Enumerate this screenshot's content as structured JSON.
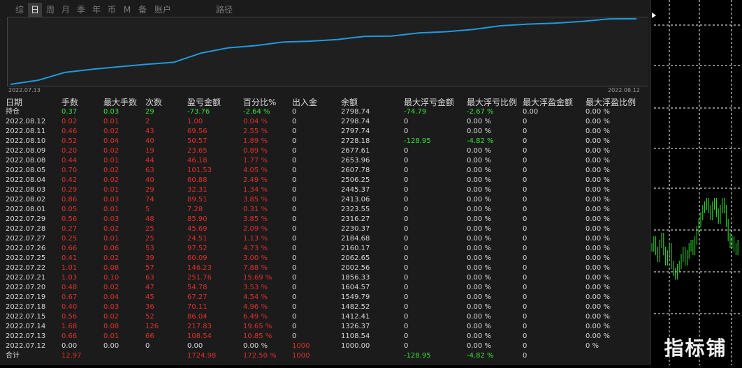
{
  "tabs": [
    "综",
    "日",
    "周",
    "月",
    "季",
    "年",
    "币",
    "M",
    "备",
    "账户",
    "路径"
  ],
  "active_tab": "日",
  "equity_chart": {
    "start_label": "2022.07.13",
    "end_label": "2022.08.12",
    "color": "#1e9be0",
    "points": [
      1000,
      1108.54,
      1326.37,
      1412.41,
      1482.52,
      1549.79,
      1604.57,
      1856.33,
      2002.56,
      2062.65,
      2160.17,
      2184.68,
      2230.37,
      2316.27,
      2323.55,
      2413.06,
      2445.37,
      2506.25,
      2607.78,
      2653.96,
      2677.61,
      2728.18,
      2797.74,
      2798.74
    ]
  },
  "headers": [
    "日期",
    "手数",
    "最大手数",
    "次数",
    "盈亏金额",
    "百分比%",
    "出入金",
    "余额",
    "最大浮亏金额",
    "最大浮亏比例",
    "最大浮盈金额",
    "最大浮盈比例"
  ],
  "position_row": [
    "持仓",
    "0.37",
    "0.03",
    "29",
    "-73.76",
    "-2.64 %",
    "0",
    "2798.74",
    "-74.79",
    "-2.67 %",
    "0.00",
    "0.00 %"
  ],
  "rows": [
    [
      "2022.08.12",
      "0.02",
      "0.01",
      "2",
      "1.00",
      "0.04 %",
      "0",
      "2798.74",
      "0",
      "0.00 %",
      "0",
      "0.00 %"
    ],
    [
      "2022.08.11",
      "0.46",
      "0.02",
      "43",
      "69.56",
      "2.55 %",
      "0",
      "2797.74",
      "0",
      "0.00 %",
      "0",
      "0.00 %"
    ],
    [
      "2022.08.10",
      "0.52",
      "0.04",
      "40",
      "50.57",
      "1.89 %",
      "0",
      "2728.18",
      "-128.95",
      "-4.82 %",
      "0",
      "0.00 %"
    ],
    [
      "2022.08.09",
      "0.20",
      "0.02",
      "19",
      "23.65",
      "0.89 %",
      "0",
      "2677.61",
      "0",
      "0.00 %",
      "0",
      "0.00 %"
    ],
    [
      "2022.08.08",
      "0.44",
      "0.01",
      "44",
      "46.18",
      "1.77 %",
      "0",
      "2653.96",
      "0",
      "0.00 %",
      "0",
      "0.00 %"
    ],
    [
      "2022.08.05",
      "0.70",
      "0.02",
      "63",
      "101.53",
      "4.05 %",
      "0",
      "2607.78",
      "0",
      "0.00 %",
      "0",
      "0.00 %"
    ],
    [
      "2022.08.04",
      "0.42",
      "0.02",
      "40",
      "60.88",
      "2.49 %",
      "0",
      "2506.25",
      "0",
      "0.00 %",
      "0",
      "0.00 %"
    ],
    [
      "2022.08.03",
      "0.29",
      "0.01",
      "29",
      "32.31",
      "1.34 %",
      "0",
      "2445.37",
      "0",
      "0.00 %",
      "0",
      "0.00 %"
    ],
    [
      "2022.08.02",
      "0.86",
      "0.03",
      "74",
      "89.51",
      "3.85 %",
      "0",
      "2413.06",
      "0",
      "0.00 %",
      "0",
      "0.00 %"
    ],
    [
      "2022.08.01",
      "0.05",
      "0.01",
      "5",
      "7.28",
      "0.31 %",
      "0",
      "2323.55",
      "0",
      "0.00 %",
      "0",
      "0.00 %"
    ],
    [
      "2022.07.29",
      "0.56",
      "0.03",
      "48",
      "85.90",
      "3.85 %",
      "0",
      "2316.27",
      "0",
      "0.00 %",
      "0",
      "0.00 %"
    ],
    [
      "2022.07.28",
      "0.27",
      "0.02",
      "25",
      "45.69",
      "2.09 %",
      "0",
      "2230.37",
      "0",
      "0.00 %",
      "0",
      "0.00 %"
    ],
    [
      "2022.07.27",
      "0.25",
      "0.01",
      "25",
      "24.51",
      "1.13 %",
      "0",
      "2184.68",
      "0",
      "0.00 %",
      "0",
      "0.00 %"
    ],
    [
      "2022.07.26",
      "0.66",
      "0.06",
      "53",
      "97.52",
      "4.73 %",
      "0",
      "2160.17",
      "0",
      "0.00 %",
      "0",
      "0.00 %"
    ],
    [
      "2022.07.25",
      "0.41",
      "0.02",
      "39",
      "60.09",
      "3.00 %",
      "0",
      "2062.65",
      "0",
      "0.00 %",
      "0",
      "0.00 %"
    ],
    [
      "2022.07.22",
      "1.01",
      "0.08",
      "57",
      "146.23",
      "7.88 %",
      "0",
      "2002.56",
      "0",
      "0.00 %",
      "0",
      "0.00 %"
    ],
    [
      "2022.07.21",
      "1.03",
      "0.10",
      "63",
      "251.76",
      "15.69 %",
      "0",
      "1856.33",
      "0",
      "0.00 %",
      "0",
      "0.00 %"
    ],
    [
      "2022.07.20",
      "0.48",
      "0.02",
      "47",
      "54.78",
      "3.53 %",
      "0",
      "1604.57",
      "0",
      "0.00 %",
      "0",
      "0.00 %"
    ],
    [
      "2022.07.19",
      "0.67",
      "0.04",
      "45",
      "67.27",
      "4.54 %",
      "0",
      "1549.79",
      "0",
      "0.00 %",
      "0",
      "0.00 %"
    ],
    [
      "2022.07.18",
      "0.40",
      "0.03",
      "36",
      "70.11",
      "4.96 %",
      "0",
      "1482.52",
      "0",
      "0.00 %",
      "0",
      "0.00 %"
    ],
    [
      "2022.07.15",
      "0.56",
      "0.02",
      "52",
      "86.04",
      "6.49 %",
      "0",
      "1412.41",
      "0",
      "0.00 %",
      "0",
      "0.00 %"
    ],
    [
      "2022.07.14",
      "1.68",
      "0.08",
      "126",
      "217.83",
      "19.65 %",
      "0",
      "1326.37",
      "0",
      "0.00 %",
      "0",
      "0.00 %"
    ],
    [
      "2022.07.13",
      "0.66",
      "0.01",
      "66",
      "108.54",
      "10.85 %",
      "0",
      "1108.54",
      "0",
      "0.00 %",
      "0",
      "0.00 %"
    ],
    [
      "2022.07.12",
      "0.00",
      "0.00",
      "0",
      "0.00",
      "0.00 %",
      "1000",
      "1000.00",
      "0",
      "0.00 %",
      "0",
      "0 %"
    ]
  ],
  "totals_row": [
    "合计",
    "12.97",
    "",
    "",
    "1724.98",
    "172.50 %",
    "1000",
    "",
    "-128.95",
    "-4.82 %",
    "0",
    ""
  ],
  "colors": {
    "profit": "#e0302a",
    "negative": "#38e038",
    "neutral": "#d8d8d8",
    "deposit": "#e0302a"
  },
  "watermark": "指标铺"
}
